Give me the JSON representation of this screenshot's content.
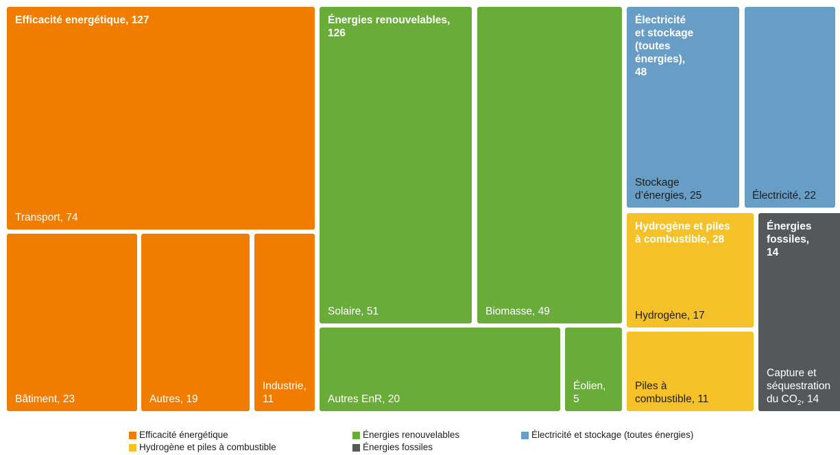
{
  "chart_data": {
    "type": "treemap",
    "categories": [
      {
        "name": "Efficacité energétique",
        "label": "Efficacité energétique, 127",
        "value": 127,
        "color": "#f07c00",
        "children": [
          {
            "label": "Transport, 74",
            "value": 74
          },
          {
            "label": "Bâtiment, 23",
            "value": 23
          },
          {
            "label": "Autres, 19",
            "value": 19
          },
          {
            "label": "Industrie, 11",
            "value": 11
          }
        ]
      },
      {
        "name": "Énergies renouvelables",
        "label": "Énergies renouvelables, 126",
        "value": 126,
        "color": "#6aac3a",
        "children": [
          {
            "label": "Solaire, 51",
            "value": 51
          },
          {
            "label": "Biomasse, 49",
            "value": 49
          },
          {
            "label": "Autres EnR, 20",
            "value": 20
          },
          {
            "label": "Éolien, 5",
            "value": 5
          }
        ]
      },
      {
        "name": "Électricité et stockage (toutes énergies)",
        "label": "Électricité et stockage (toutes énergies), 48",
        "value": 48,
        "color": "#689dc5",
        "children": [
          {
            "label": "Stockage d’énergies, 25",
            "value": 25
          },
          {
            "label": "Électricité, 22",
            "value": 22
          }
        ]
      },
      {
        "name": "Hydrogène et piles à combustible",
        "label": "Hydrogène et piles à combustible, 28",
        "value": 28,
        "color": "#f4c128",
        "children": [
          {
            "label": "Hydrogène, 17",
            "value": 17
          },
          {
            "label": "Piles à combustible, 11",
            "value": 11
          }
        ]
      },
      {
        "name": "Énergies fossiles",
        "label": "Énergies fossiles, 14",
        "value": 14,
        "color": "#54585a",
        "children": [
          {
            "label": "Capture et séquestration du CO2, 14",
            "value": 14
          }
        ]
      }
    ],
    "legend": [
      {
        "label": "Efficacité énergétique",
        "color": "#f07c00"
      },
      {
        "label": "Énergies renouvelables",
        "color": "#6aac3a"
      },
      {
        "label": "Électricité et stockage (toutes énergies)",
        "color": "#689dc5"
      },
      {
        "label": "Hydrogène et piles à combustible",
        "color": "#f4c128"
      },
      {
        "label": "Énergies fossiles",
        "color": "#54585a"
      }
    ],
    "legend_position": "bottom"
  },
  "text": {
    "cat_eff_line1": "Efficacité energétique, 127",
    "cat_enr_line1": "Énergies renouvelables,",
    "cat_enr_line2": "126",
    "cat_elec_line1": "Électricité",
    "cat_elec_line2": "et stockage",
    "cat_elec_line3": "(toutes",
    "cat_elec_line4": "énergies),",
    "cat_elec_line5": "48",
    "cat_hyd_line1": "Hydrogène et piles",
    "cat_hyd_line2": "à combustible, 28",
    "cat_fos_line1": "Énergies",
    "cat_fos_line2": "fossiles,",
    "cat_fos_line3": "14",
    "sub_transport": "Transport, 74",
    "sub_batiment": "Bâtiment, 23",
    "sub_autres": "Autres, 19",
    "sub_industrie_l1": "Industrie,",
    "sub_industrie_l2": "11",
    "sub_solaire": "Solaire, 51",
    "sub_biomasse": "Biomasse, 49",
    "sub_autres_enr": "Autres EnR, 20",
    "sub_eolien_l1": "Éolien,",
    "sub_eolien_l2": "5",
    "sub_stockage_l1": "Stockage",
    "sub_stockage_l2": "d’énergies, 25",
    "sub_electricite": "Électricité, 22",
    "sub_hydrogene": "Hydrogène, 17",
    "sub_piles_l1": "Piles à",
    "sub_piles_l2": "combustible, 11",
    "sub_capture_l1": "Capture et",
    "sub_capture_l2": "séquestration",
    "sub_capture_l3a": "du CO",
    "sub_capture_l3sub": "2",
    "sub_capture_l3b": ", 14",
    "legend_1": "Efficacité énergétique",
    "legend_2": "Énergies renouvelables",
    "legend_3": "Électricité et stockage (toutes énergies)",
    "legend_4": "Hydrogène et piles à combustible",
    "legend_5": "Énergies fossiles"
  }
}
